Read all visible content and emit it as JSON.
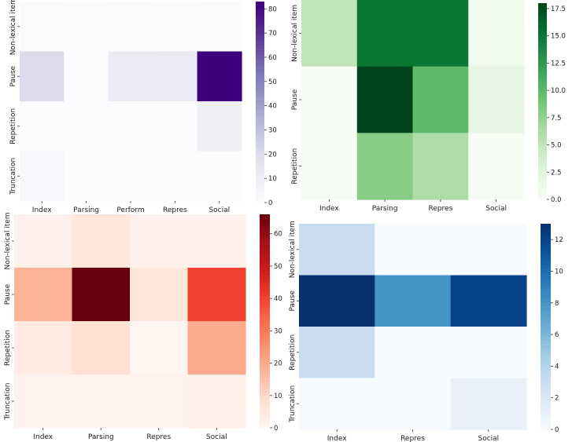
{
  "chart_data": [
    {
      "type": "heatmap",
      "colormap": "Purples",
      "rows": [
        "Non-lexical item",
        "Pause",
        "Repetition",
        "Truncation"
      ],
      "columns": [
        "Index",
        "Parsing",
        "Perform",
        "Repres",
        "Social"
      ],
      "values": [
        [
          1,
          0,
          1,
          0,
          1
        ],
        [
          20,
          0,
          12,
          12,
          83
        ],
        [
          0,
          0,
          0,
          0,
          10
        ],
        [
          3,
          0,
          0,
          0,
          0
        ]
      ],
      "vmin": 0,
      "vmax": 83,
      "colorbar_ticks": [
        0,
        10,
        20,
        30,
        40,
        50,
        60,
        70,
        80
      ]
    },
    {
      "type": "heatmap",
      "colormap": "Greens",
      "rows": [
        "Non-lexical item",
        "Pause",
        "Repetition"
      ],
      "columns": [
        "Index",
        "Parsing",
        "Repres",
        "Social"
      ],
      "values": [
        [
          5,
          15,
          15,
          1
        ],
        [
          0,
          18,
          10,
          2
        ],
        [
          0,
          8,
          6,
          0
        ]
      ],
      "vmin": 0,
      "vmax": 18,
      "colorbar_ticks": [
        "0.0",
        "2.5",
        "5.0",
        "7.5",
        "10.0",
        "12.5",
        "15.0",
        "17.5"
      ]
    },
    {
      "type": "heatmap",
      "colormap": "Reds",
      "rows": [
        "Non-lexical item",
        "Pause",
        "Repetition",
        "Truncation"
      ],
      "columns": [
        "Index",
        "Parsing",
        "Repres",
        "Social"
      ],
      "values": [
        [
          2,
          6,
          2,
          2
        ],
        [
          18,
          66,
          6,
          40
        ],
        [
          4,
          8,
          0,
          20
        ],
        [
          1,
          1,
          1,
          2
        ]
      ],
      "vmin": 0,
      "vmax": 66,
      "colorbar_ticks": [
        0,
        10,
        20,
        30,
        40,
        50,
        60
      ]
    },
    {
      "type": "heatmap",
      "colormap": "Blues",
      "rows": [
        "Non-lexical item",
        "Pause",
        "Repetition",
        "Truncation"
      ],
      "columns": [
        "Index",
        "Repres",
        "Social"
      ],
      "values": [
        [
          3,
          0,
          0
        ],
        [
          13,
          8,
          12
        ],
        [
          3,
          0,
          0
        ],
        [
          0,
          0,
          1
        ]
      ],
      "vmin": 0,
      "vmax": 13,
      "colorbar_ticks": [
        0,
        2,
        4,
        6,
        8,
        10,
        12
      ]
    }
  ]
}
